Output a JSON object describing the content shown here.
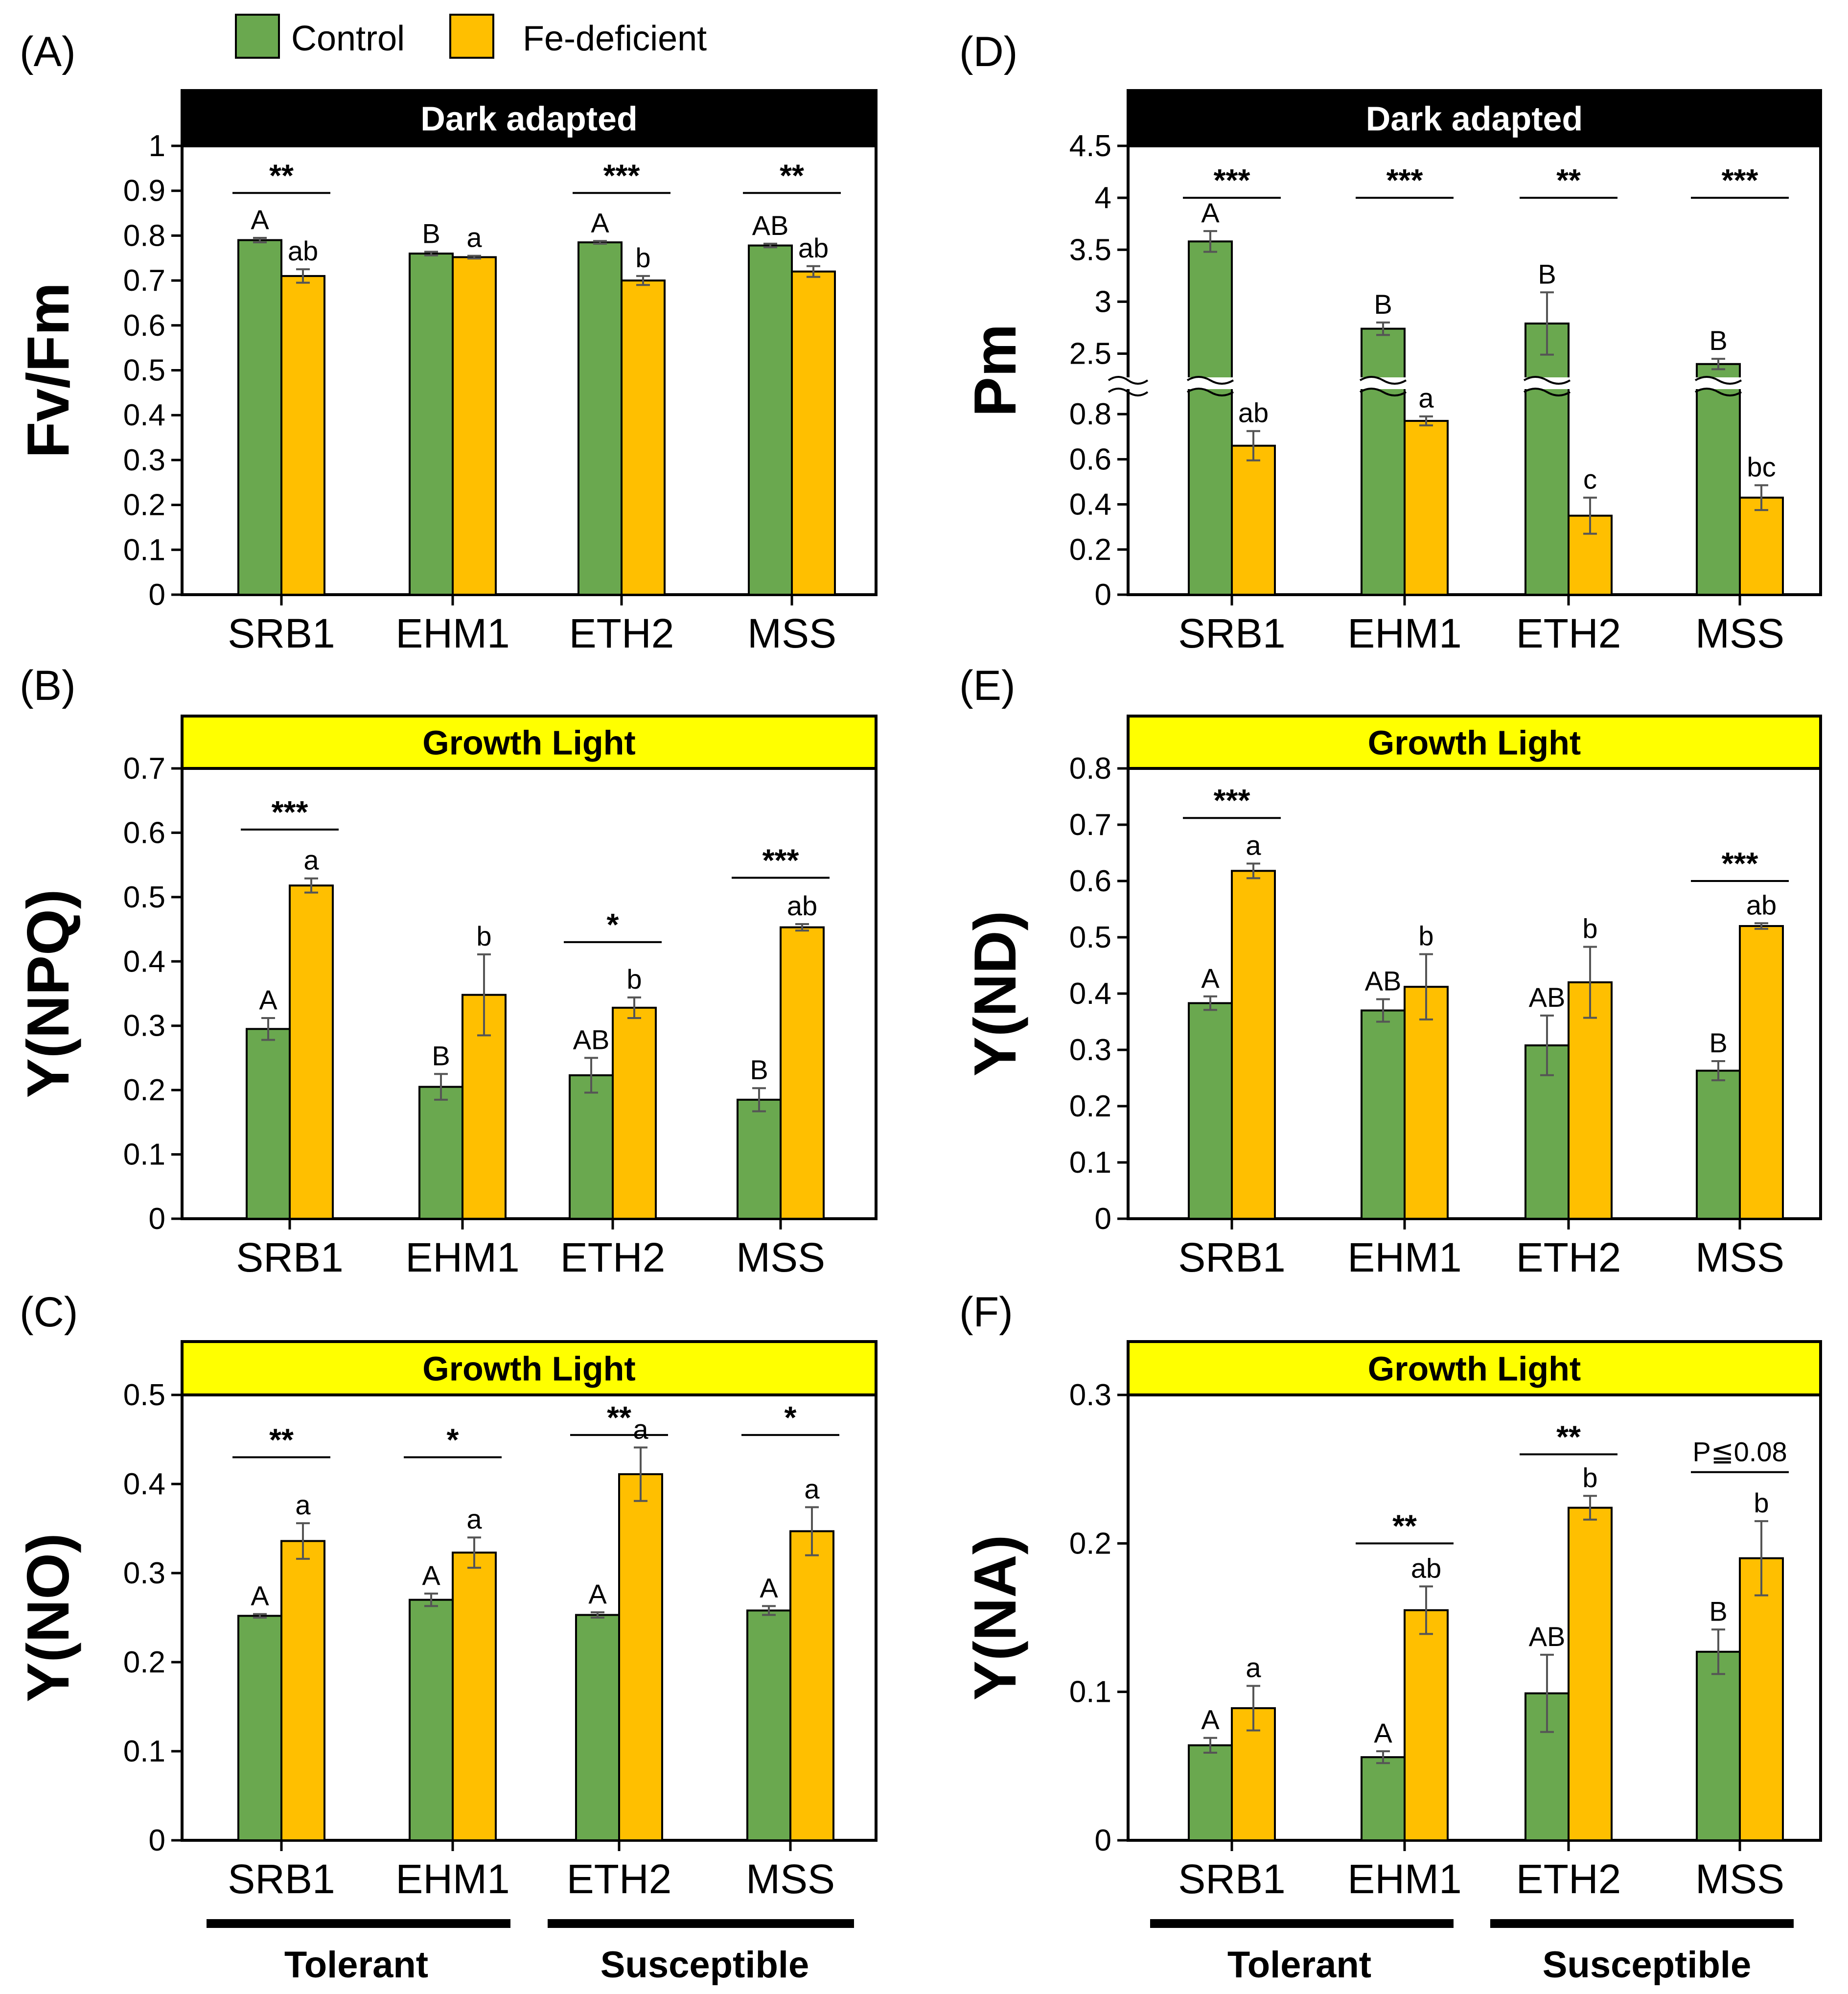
{
  "colors": {
    "control": "#6aa84f",
    "fe_deficient": "#ffbf00",
    "dark_banner": "#000000",
    "light_banner": "#ffff00"
  },
  "legend": {
    "control_label": "Control",
    "fe_label": "Fe-deficient"
  },
  "groups": {
    "tolerant_label": "Tolerant",
    "susceptible_label": "Susceptible"
  },
  "chart_data": [
    {
      "id": "A",
      "type": "bar",
      "panel_label": "(A)",
      "banner": "Dark adapted",
      "banner_style": "dark",
      "ylabel": "Fv/Fm",
      "xlabel": "",
      "ylim": [
        0,
        1
      ],
      "yticks": [
        "0",
        "0.1",
        "0.2",
        "0.3",
        "0.4",
        "0.5",
        "0.6",
        "0.7",
        "0.8",
        "0.9",
        "1"
      ],
      "categories": [
        "SRB1",
        "EHM1",
        "ETH2",
        "MSS"
      ],
      "series": [
        {
          "name": "Control",
          "values": [
            0.79,
            0.76,
            0.785,
            0.778
          ],
          "errors": [
            0.005,
            0.004,
            0.003,
            0.004
          ],
          "letters": [
            "A",
            "B",
            "A",
            "AB"
          ]
        },
        {
          "name": "Fe-deficient",
          "values": [
            0.71,
            0.752,
            0.7,
            0.72
          ],
          "errors": [
            0.015,
            0.003,
            0.01,
            0.012
          ],
          "letters": [
            "ab",
            "a",
            "b",
            "ab"
          ]
        }
      ],
      "significance": [
        {
          "category": "SRB1",
          "label": "**",
          "y": 0.895
        },
        {
          "category": "ETH2",
          "label": "***",
          "y": 0.895
        },
        {
          "category": "MSS",
          "label": "**",
          "y": 0.895
        }
      ]
    },
    {
      "id": "B",
      "type": "bar",
      "panel_label": "(B)",
      "banner": "Growth Light",
      "banner_style": "light",
      "ylabel": "Y(NPQ)",
      "xlabel": "",
      "ylim": [
        0,
        0.7
      ],
      "yticks": [
        "0",
        "0.1",
        "0.2",
        "0.3",
        "0.4",
        "0.5",
        "0.6",
        "0.7"
      ],
      "categories": [
        "SRB1",
        "EHM1",
        "ETH2",
        "MSS"
      ],
      "series": [
        {
          "name": "Control",
          "values": [
            0.295,
            0.205,
            0.223,
            0.185
          ],
          "errors": [
            0.017,
            0.02,
            0.027,
            0.018
          ],
          "letters": [
            "A",
            "B",
            "AB",
            "B"
          ]
        },
        {
          "name": "Fe-deficient",
          "values": [
            0.518,
            0.348,
            0.328,
            0.453
          ],
          "errors": [
            0.011,
            0.063,
            0.016,
            0.005
          ],
          "letters": [
            "a",
            "b",
            "b",
            "ab"
          ]
        }
      ],
      "significance": [
        {
          "category": "SRB1",
          "label": "***",
          "y": 0.605
        },
        {
          "category": "ETH2",
          "label": "*",
          "y": 0.43
        },
        {
          "category": "MSS",
          "label": "***",
          "y": 0.53
        }
      ]
    },
    {
      "id": "C",
      "type": "bar",
      "panel_label": "(C)",
      "banner": "Growth Light",
      "banner_style": "light",
      "ylabel": "Y(NO)",
      "xlabel": "",
      "ylim": [
        0,
        0.5
      ],
      "yticks": [
        "0",
        "0.1",
        "0.2",
        "0.3",
        "0.4",
        "0.5"
      ],
      "categories": [
        "SRB1",
        "EHM1",
        "ETH2",
        "MSS"
      ],
      "series": [
        {
          "name": "Control",
          "values": [
            0.252,
            0.27,
            0.253,
            0.258
          ],
          "errors": [
            0.002,
            0.007,
            0.003,
            0.005
          ],
          "letters": [
            "A",
            "A",
            "A",
            "A"
          ]
        },
        {
          "name": "Fe-deficient",
          "values": [
            0.336,
            0.323,
            0.411,
            0.347
          ],
          "errors": [
            0.02,
            0.017,
            0.03,
            0.027
          ],
          "letters": [
            "a",
            "a",
            "a",
            "a"
          ]
        }
      ],
      "significance": [
        {
          "category": "SRB1",
          "label": "**",
          "y": 0.43
        },
        {
          "category": "EHM1",
          "label": "*",
          "y": 0.43
        },
        {
          "category": "ETH2",
          "label": "**",
          "y": 0.455
        },
        {
          "category": "MSS",
          "label": "*",
          "y": 0.455
        }
      ]
    },
    {
      "id": "D",
      "type": "bar",
      "panel_label": "(D)",
      "banner": "Dark adapted",
      "banner_style": "dark",
      "ylabel": "Pm",
      "xlabel": "",
      "axis_break": {
        "lower": [
          0,
          0.9
        ],
        "upper": [
          2.3,
          4.5
        ]
      },
      "yticks_lower": [
        "0",
        "0.2",
        "0.4",
        "0.6",
        "0.8"
      ],
      "yticks_upper": [
        "2.5",
        "3",
        "3.5",
        "4",
        "4.5"
      ],
      "categories": [
        "SRB1",
        "EHM1",
        "ETH2",
        "MSS"
      ],
      "series": [
        {
          "name": "Control",
          "values": [
            3.58,
            2.74,
            2.79,
            2.4
          ],
          "errors": [
            0.1,
            0.06,
            0.3,
            0.05
          ],
          "letters": [
            "A",
            "B",
            "B",
            "B"
          ]
        },
        {
          "name": "Fe-deficient",
          "values": [
            0.66,
            0.77,
            0.35,
            0.43
          ],
          "errors": [
            0.065,
            0.02,
            0.08,
            0.055
          ],
          "letters": [
            "ab",
            "a",
            "c",
            "bc"
          ]
        }
      ],
      "significance": [
        {
          "category": "SRB1",
          "label": "***",
          "y": 4.0
        },
        {
          "category": "EHM1",
          "label": "***",
          "y": 4.0
        },
        {
          "category": "ETH2",
          "label": "**",
          "y": 4.0
        },
        {
          "category": "MSS",
          "label": "***",
          "y": 4.0
        }
      ]
    },
    {
      "id": "E",
      "type": "bar",
      "panel_label": "(E)",
      "banner": "Growth Light",
      "banner_style": "light",
      "ylabel": "Y(ND)",
      "xlabel": "",
      "ylim": [
        0,
        0.8
      ],
      "yticks": [
        "0",
        "0.1",
        "0.2",
        "0.3",
        "0.4",
        "0.5",
        "0.6",
        "0.7",
        "0.8"
      ],
      "categories": [
        "SRB1",
        "EHM1",
        "ETH2",
        "MSS"
      ],
      "series": [
        {
          "name": "Control",
          "values": [
            0.383,
            0.37,
            0.308,
            0.263
          ],
          "errors": [
            0.012,
            0.02,
            0.053,
            0.017
          ],
          "letters": [
            "A",
            "AB",
            "AB",
            "B"
          ]
        },
        {
          "name": "Fe-deficient",
          "values": [
            0.618,
            0.412,
            0.42,
            0.52
          ],
          "errors": [
            0.013,
            0.058,
            0.063,
            0.005
          ],
          "letters": [
            "a",
            "b",
            "b",
            "ab"
          ]
        }
      ],
      "significance": [
        {
          "category": "SRB1",
          "label": "***",
          "y": 0.712
        },
        {
          "category": "MSS",
          "label": "***",
          "y": 0.6
        }
      ]
    },
    {
      "id": "F",
      "type": "bar",
      "panel_label": "(F)",
      "banner": "Growth Light",
      "banner_style": "light",
      "ylabel": "Y(NA)",
      "xlabel": "",
      "ylim": [
        0,
        0.3
      ],
      "yticks": [
        "0",
        "0.1",
        "0.2",
        "0.3"
      ],
      "categories": [
        "SRB1",
        "EHM1",
        "ETH2",
        "MSS"
      ],
      "series": [
        {
          "name": "Control",
          "values": [
            0.064,
            0.056,
            0.099,
            0.127
          ],
          "errors": [
            0.005,
            0.004,
            0.026,
            0.015
          ],
          "letters": [
            "A",
            "A",
            "AB",
            "B"
          ]
        },
        {
          "name": "Fe-deficient",
          "values": [
            0.089,
            0.155,
            0.224,
            0.19
          ],
          "errors": [
            0.015,
            0.016,
            0.008,
            0.025
          ],
          "letters": [
            "a",
            "ab",
            "b",
            "b"
          ]
        }
      ],
      "significance": [
        {
          "category": "EHM1",
          "label": "**",
          "y": 0.2
        },
        {
          "category": "ETH2",
          "label": "**",
          "y": 0.26
        },
        {
          "category": "MSS",
          "label": "P≦0.08",
          "y": 0.248
        }
      ]
    }
  ]
}
